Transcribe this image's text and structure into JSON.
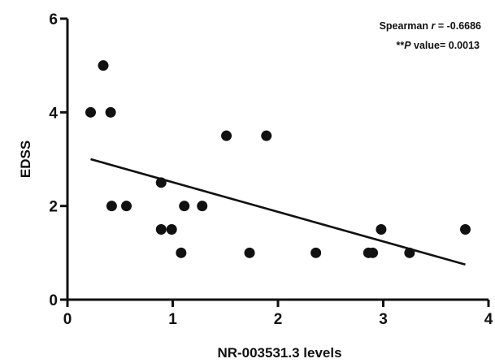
{
  "chart_data": {
    "type": "scatter",
    "title": "",
    "xlabel": "NR-003531.3 levels",
    "ylabel": "EDSS",
    "xlim": [
      0,
      4
    ],
    "ylim": [
      0,
      6
    ],
    "x_ticks": [
      0,
      1,
      2,
      3,
      4
    ],
    "y_ticks": [
      0,
      2,
      4,
      6
    ],
    "grid": false,
    "points": [
      {
        "x": 0.22,
        "y": 4.0
      },
      {
        "x": 0.34,
        "y": 5.0
      },
      {
        "x": 0.41,
        "y": 4.0
      },
      {
        "x": 0.42,
        "y": 2.0
      },
      {
        "x": 0.56,
        "y": 2.0
      },
      {
        "x": 0.89,
        "y": 2.5
      },
      {
        "x": 0.89,
        "y": 1.5
      },
      {
        "x": 0.99,
        "y": 1.5
      },
      {
        "x": 1.08,
        "y": 1.0
      },
      {
        "x": 1.11,
        "y": 2.0
      },
      {
        "x": 1.28,
        "y": 2.0
      },
      {
        "x": 1.51,
        "y": 3.5
      },
      {
        "x": 1.73,
        "y": 1.0
      },
      {
        "x": 1.89,
        "y": 3.5
      },
      {
        "x": 2.36,
        "y": 1.0
      },
      {
        "x": 2.86,
        "y": 1.0
      },
      {
        "x": 2.9,
        "y": 1.0
      },
      {
        "x": 2.98,
        "y": 1.5
      },
      {
        "x": 3.25,
        "y": 1.0
      },
      {
        "x": 3.78,
        "y": 1.5
      }
    ],
    "regression_line": {
      "x": [
        0.22,
        3.78
      ],
      "y": [
        3.0,
        0.75
      ]
    },
    "annotations": [
      {
        "line1_prefix": "Spearman ",
        "line1_italic": "r",
        "line1_suffix": " = -0.6686"
      },
      {
        "line2_prefix": "**",
        "line2_italic": "P",
        "line2_suffix": " value= 0.0013"
      }
    ]
  }
}
